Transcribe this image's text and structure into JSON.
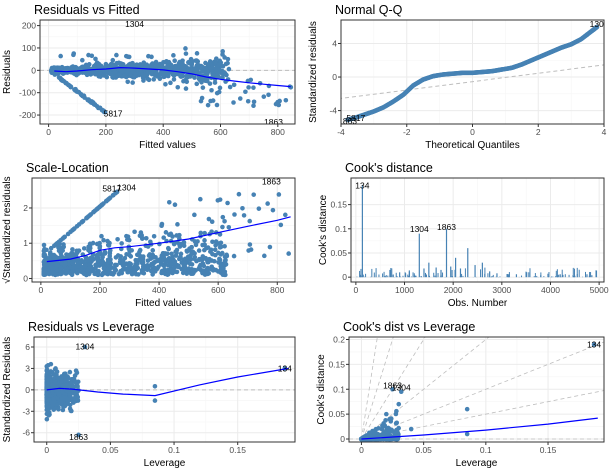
{
  "colors": {
    "points": "#4682B4",
    "smooth": "#0000FF",
    "reference": "#BEBEBE",
    "panel_border": "#333333",
    "grid_major": "#EBEBEB",
    "grid_minor": "#F5F5F5",
    "text": "#000000",
    "tick_text": "#4D4D4D"
  },
  "chart_data": [
    {
      "id": "residuals-vs-fitted",
      "type": "scatter",
      "title": "Residuals vs Fitted",
      "xlabel": "Fitted values",
      "ylabel": "Residuals",
      "xlim": [
        -30,
        860
      ],
      "ylim": [
        -240,
        225
      ],
      "xticks": [
        0,
        200,
        400,
        600,
        800
      ],
      "yticks": [
        -200,
        -100,
        0,
        100,
        200
      ],
      "grid": true,
      "reference_line": {
        "orientation": "horizontal",
        "value": 0,
        "style": "dashed"
      },
      "smooth": [
        [
          20,
          -3
        ],
        [
          60,
          -6
        ],
        [
          100,
          -3
        ],
        [
          150,
          3
        ],
        [
          200,
          6
        ],
        [
          250,
          12
        ],
        [
          300,
          10
        ],
        [
          350,
          6
        ],
        [
          400,
          2
        ],
        [
          450,
          -6
        ],
        [
          500,
          -16
        ],
        [
          550,
          -30
        ],
        [
          600,
          -40
        ],
        [
          650,
          -48
        ],
        [
          700,
          -56
        ],
        [
          750,
          -62
        ],
        [
          800,
          -68
        ],
        [
          845,
          -73
        ]
      ],
      "point_labels": [
        {
          "text": "1304",
          "x": 300,
          "y": 208
        },
        {
          "text": "5817",
          "x": 225,
          "y": -192
        },
        {
          "text": "1863",
          "x": 785,
          "y": -232
        }
      ]
    },
    {
      "id": "normal-qq",
      "type": "scatter",
      "title": "Normal Q-Q",
      "xlabel": "Theoretical Quantiles",
      "ylabel": "Standardized residuals",
      "xlim": [
        -4,
        4
      ],
      "ylim": [
        -5.6,
        6.8
      ],
      "xticks": [
        -4,
        -2,
        0,
        2,
        4
      ],
      "yticks": [
        -4,
        0,
        4
      ],
      "grid": true,
      "reference_line": {
        "orientation": "diagonal",
        "from": [
          -4.3,
          -2.7
        ],
        "to": [
          4.3,
          1.6
        ],
        "style": "dashed"
      },
      "qq_curve": [
        [
          -3.8,
          -5.1
        ],
        [
          -3.6,
          -4.9
        ],
        [
          -3.3,
          -4.5
        ],
        [
          -3.0,
          -4.1
        ],
        [
          -2.7,
          -3.6
        ],
        [
          -2.4,
          -2.9
        ],
        [
          -2.1,
          -2.1
        ],
        [
          -1.8,
          -1.0
        ],
        [
          -1.5,
          -0.3
        ],
        [
          -1.2,
          0.1
        ],
        [
          -0.9,
          0.3
        ],
        [
          -0.6,
          0.4
        ],
        [
          -0.3,
          0.5
        ],
        [
          0.0,
          0.5
        ],
        [
          0.3,
          0.6
        ],
        [
          0.6,
          0.7
        ],
        [
          0.9,
          0.9
        ],
        [
          1.2,
          1.1
        ],
        [
          1.5,
          1.5
        ],
        [
          1.8,
          2.0
        ],
        [
          2.1,
          2.5
        ],
        [
          2.4,
          3.0
        ],
        [
          2.7,
          3.5
        ],
        [
          3.0,
          3.9
        ],
        [
          3.3,
          4.5
        ],
        [
          3.6,
          5.4
        ],
        [
          3.8,
          6.0
        ]
      ],
      "point_labels": [
        {
          "text": "1304",
          "x": 3.85,
          "y": 6.3
        },
        {
          "text": "5817",
          "x": -3.55,
          "y": -4.9
        },
        {
          "text": "1863",
          "x": -3.8,
          "y": -5.25
        }
      ]
    },
    {
      "id": "scale-location",
      "type": "scatter",
      "title": "Scale-Location",
      "xlabel": "Fitted values",
      "ylabel": "√Standardized residuals",
      "xlim": [
        -30,
        860
      ],
      "ylim": [
        -0.1,
        2.85
      ],
      "xticks": [
        0,
        200,
        400,
        600,
        800
      ],
      "yticks": [
        0,
        1,
        2
      ],
      "grid": true,
      "smooth": [
        [
          20,
          0.48
        ],
        [
          100,
          0.55
        ],
        [
          150,
          0.65
        ],
        [
          200,
          0.8
        ],
        [
          250,
          0.87
        ],
        [
          300,
          0.9
        ],
        [
          400,
          1.0
        ],
        [
          500,
          1.12
        ],
        [
          600,
          1.3
        ],
        [
          700,
          1.48
        ],
        [
          800,
          1.65
        ],
        [
          845,
          1.75
        ]
      ],
      "point_labels": [
        {
          "text": "5817",
          "x": 240,
          "y": 2.55
        },
        {
          "text": "1304",
          "x": 290,
          "y": 2.58
        },
        {
          "text": "1863",
          "x": 780,
          "y": 2.75
        }
      ]
    },
    {
      "id": "cooks-distance",
      "type": "bar",
      "title": "Cook's distance",
      "xlabel": "Obs. Number",
      "ylabel": "Cook's distance",
      "xlim": [
        -100,
        5100
      ],
      "ylim": [
        -0.01,
        0.205
      ],
      "xticks": [
        0,
        1000,
        2000,
        3000,
        4000,
        5000
      ],
      "yticks": [
        0.0,
        0.05,
        0.1,
        0.15
      ],
      "grid": true,
      "bars": [
        [
          134,
          0.19
        ],
        [
          1304,
          0.09
        ],
        [
          1863,
          0.1
        ],
        [
          2300,
          0.06
        ],
        [
          2050,
          0.04
        ],
        [
          1500,
          0.03
        ],
        [
          2600,
          0.03
        ],
        [
          700,
          0.015
        ],
        [
          900,
          0.01
        ],
        [
          1100,
          0.012
        ],
        [
          1400,
          0.018
        ],
        [
          1650,
          0.02
        ],
        [
          1750,
          0.015
        ],
        [
          1950,
          0.022
        ],
        [
          2150,
          0.018
        ],
        [
          2450,
          0.025
        ],
        [
          2750,
          0.012
        ],
        [
          2900,
          0.008
        ],
        [
          3300,
          0.006
        ],
        [
          3800,
          0.004
        ],
        [
          4200,
          0.006
        ],
        [
          4500,
          0.003
        ],
        [
          4750,
          0.006
        ],
        [
          4850,
          0.004
        ]
      ],
      "point_labels": [
        {
          "text": "134",
          "x": 134,
          "y": 0.19
        },
        {
          "text": "1304",
          "x": 1304,
          "y": 0.1
        },
        {
          "text": "1863",
          "x": 1863,
          "y": 0.104
        }
      ]
    },
    {
      "id": "residuals-vs-leverage",
      "type": "scatter",
      "title": "Residuals vs Leverage",
      "xlabel": "Leverage",
      "ylabel": "Standardized Residuals",
      "xlim": [
        -0.01,
        0.195
      ],
      "ylim": [
        -7.3,
        7.4
      ],
      "xticks": [
        0.0,
        0.05,
        0.1,
        0.15
      ],
      "yticks": [
        -6,
        -3,
        0,
        3,
        6
      ],
      "grid": true,
      "reference_line": {
        "orientation": "horizontal",
        "value": 0,
        "style": "dashed"
      },
      "smooth": [
        [
          0.0,
          0.0
        ],
        [
          0.01,
          0.2
        ],
        [
          0.02,
          0.1
        ],
        [
          0.04,
          -0.3
        ],
        [
          0.06,
          -0.6
        ],
        [
          0.085,
          -0.8
        ],
        [
          0.12,
          0.7
        ],
        [
          0.15,
          1.8
        ],
        [
          0.19,
          3.0
        ]
      ],
      "point_labels": [
        {
          "text": "1304",
          "x": 0.03,
          "y": 6.1
        },
        {
          "text": "1863",
          "x": 0.025,
          "y": -6.6
        },
        {
          "text": "134",
          "x": 0.187,
          "y": 3.0
        }
      ]
    },
    {
      "id": "cooks-dist-vs-leverage",
      "type": "scatter",
      "title": "Cook's dist vs Leverage",
      "xlabel": "Leverage",
      "ylabel": "Cook's distance",
      "xlim": [
        -0.01,
        0.195
      ],
      "ylim": [
        -0.006,
        0.205
      ],
      "xticks": [
        0.0,
        0.05,
        0.1,
        0.15
      ],
      "yticks": [
        0.0,
        0.05,
        0.1,
        0.15,
        0.2
      ],
      "grid": true,
      "smooth": [
        [
          0.0,
          0.0
        ],
        [
          0.05,
          0.008
        ],
        [
          0.1,
          0.018
        ],
        [
          0.15,
          0.03
        ],
        [
          0.19,
          0.042
        ]
      ],
      "point_labels": [
        {
          "text": "1863",
          "x": 0.025,
          "y": 0.108
        },
        {
          "text": "1304",
          "x": 0.032,
          "y": 0.104
        },
        {
          "text": "134",
          "x": 0.187,
          "y": 0.19
        }
      ]
    }
  ]
}
